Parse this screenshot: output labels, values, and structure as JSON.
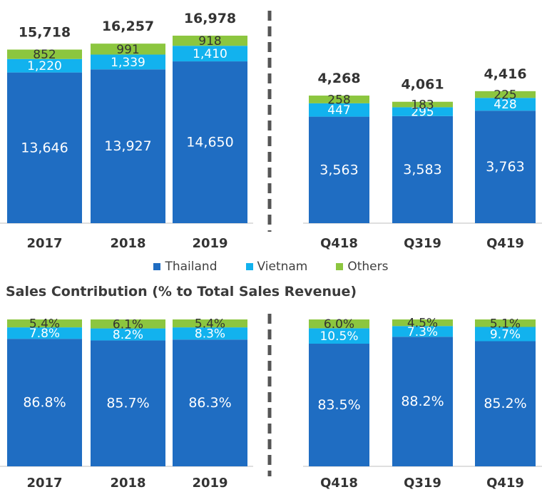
{
  "colors": {
    "thailand": "#1f6dc2",
    "vietnam": "#12b2ee",
    "others": "#8cc63f",
    "divider": "#555555",
    "axis": "#bfbfbf"
  },
  "legend": [
    {
      "name": "Thailand",
      "color": "#1f6dc2"
    },
    {
      "name": "Vietnam",
      "color": "#12b2ee"
    },
    {
      "name": "Others",
      "color": "#8cc63f"
    }
  ],
  "section_title": "Sales Contribution (% to Total Sales Revenue)",
  "chart_data": [
    {
      "type": "bar",
      "stacked": true,
      "categories": [
        "2017",
        "2018",
        "2019"
      ],
      "series": [
        {
          "name": "Thailand",
          "values": [
            13646,
            13927,
            14650
          ],
          "labels": [
            "13,646",
            "13,927",
            "14,650"
          ]
        },
        {
          "name": "Vietnam",
          "values": [
            1220,
            1339,
            1410
          ],
          "labels": [
            "1,220",
            "1,339",
            "1,410"
          ]
        },
        {
          "name": "Others",
          "values": [
            852,
            991,
            918
          ],
          "labels": [
            "852",
            "991",
            "918"
          ]
        }
      ],
      "totals": [
        "15,718",
        "16,257",
        "16,978"
      ],
      "total_values": [
        15718,
        16257,
        16978
      ]
    },
    {
      "type": "bar",
      "stacked": true,
      "categories": [
        "Q418",
        "Q319",
        "Q419"
      ],
      "series": [
        {
          "name": "Thailand",
          "values": [
            3563,
            3583,
            3763
          ],
          "labels": [
            "3,563",
            "3,583",
            "3,763"
          ]
        },
        {
          "name": "Vietnam",
          "values": [
            447,
            295,
            428
          ],
          "labels": [
            "447",
            "295",
            "428"
          ]
        },
        {
          "name": "Others",
          "values": [
            258,
            183,
            225
          ],
          "labels": [
            "258",
            "183",
            "225"
          ]
        }
      ],
      "totals": [
        "4,268",
        "4,061",
        "4,416"
      ],
      "total_values": [
        4268,
        4061,
        4416
      ]
    },
    {
      "type": "bar",
      "stacked": true,
      "percent": true,
      "categories": [
        "2017",
        "2018",
        "2019"
      ],
      "series": [
        {
          "name": "Thailand",
          "values": [
            86.8,
            85.7,
            86.3
          ],
          "labels": [
            "86.8%",
            "85.7%",
            "86.3%"
          ]
        },
        {
          "name": "Vietnam",
          "values": [
            7.8,
            8.2,
            8.3
          ],
          "labels": [
            "7.8%",
            "8.2%",
            "8.3%"
          ]
        },
        {
          "name": "Others",
          "values": [
            5.4,
            6.1,
            5.4
          ],
          "labels": [
            "5.4%",
            "6.1%",
            "5.4%"
          ]
        }
      ]
    },
    {
      "type": "bar",
      "stacked": true,
      "percent": true,
      "categories": [
        "Q418",
        "Q319",
        "Q419"
      ],
      "series": [
        {
          "name": "Thailand",
          "values": [
            83.5,
            88.2,
            85.2
          ],
          "labels": [
            "83.5%",
            "88.2%",
            "85.2%"
          ]
        },
        {
          "name": "Vietnam",
          "values": [
            10.5,
            7.3,
            9.7
          ],
          "labels": [
            "10.5%",
            "7.3%",
            "9.7%"
          ]
        },
        {
          "name": "Others",
          "values": [
            6.0,
            4.5,
            5.1
          ],
          "labels": [
            "6.0%",
            "4.5%",
            "5.1%"
          ]
        }
      ]
    }
  ]
}
